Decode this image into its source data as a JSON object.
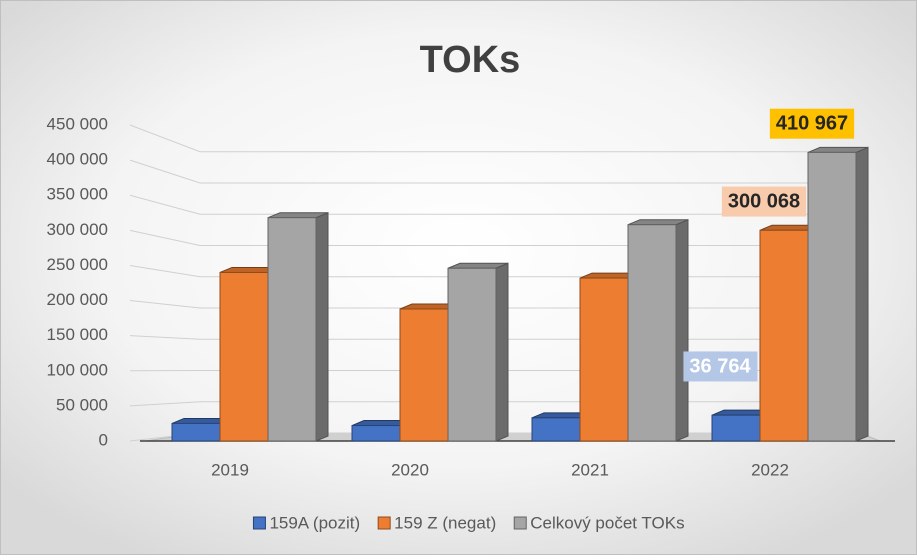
{
  "chart_data": {
    "type": "bar3d",
    "title": "TOKs",
    "categories": [
      "2019",
      "2020",
      "2021",
      "2022"
    ],
    "series": [
      {
        "name": "159A (pozit)",
        "color": "#4472c4",
        "values": [
          25000,
          22000,
          33000,
          36764
        ],
        "value_labels": [
          null,
          null,
          null,
          "36 764"
        ]
      },
      {
        "name": "159 Z (negat)",
        "color": "#ed7d31",
        "values": [
          240000,
          188000,
          232000,
          300068
        ],
        "value_labels": [
          null,
          null,
          null,
          "300 068"
        ]
      },
      {
        "name": "Celkový počet TOKs",
        "color": "#a5a5a5",
        "values": [
          318000,
          246000,
          308000,
          410967
        ],
        "value_labels": [
          null,
          null,
          null,
          "410 967"
        ]
      }
    ],
    "ylim": [
      0,
      450000
    ],
    "yticks": [
      0,
      {
        "value": 50000,
        "label": "50 000"
      },
      {
        "value": 100000,
        "label": "100 000"
      },
      {
        "value": 150000,
        "label": "150 000"
      },
      {
        "value": 200000,
        "label": "200 000"
      },
      {
        "value": 250000,
        "label": "250 000"
      },
      {
        "value": 300000,
        "label": "300 000"
      },
      {
        "value": 350000,
        "label": "350 000"
      },
      {
        "value": 400000,
        "label": "400 000"
      },
      {
        "value": 450000,
        "label": "450 000"
      }
    ],
    "grid": true,
    "legend": "bottom"
  }
}
